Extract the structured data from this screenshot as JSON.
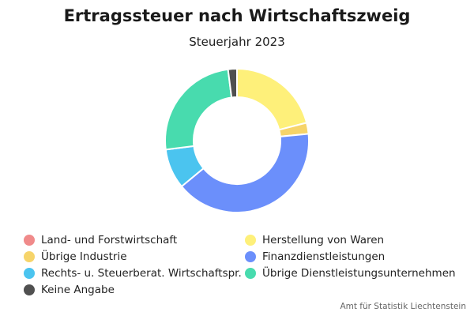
{
  "chart_data": {
    "type": "pie",
    "title": "Ertragssteuer nach Wirtschaftszweig",
    "subtitle": "Steuerjahr 2023",
    "source": "Amt für Statistik Liechtenstein",
    "legend_position": "bottom",
    "donut": true,
    "slices": [
      {
        "label": "Land- und Forstwirtschaft",
        "value": 0,
        "color": "#f08a8a"
      },
      {
        "label": "Herstellung von Waren",
        "value": 21,
        "color": "#fef07a"
      },
      {
        "label": "Übrige Industrie",
        "value": 2.5,
        "color": "#f6d46a"
      },
      {
        "label": "Finanzdienstleistungen",
        "value": 40.5,
        "color": "#6b8ffb"
      },
      {
        "label": "Rechts- u. Steuerberat. Wirtschaftspr.",
        "value": 9,
        "color": "#4bc4ef"
      },
      {
        "label": "Übrige Dienstleistungsunternehmen",
        "value": 25,
        "color": "#48dbae"
      },
      {
        "label": "Keine Angabe",
        "value": 2,
        "color": "#505050"
      }
    ]
  }
}
